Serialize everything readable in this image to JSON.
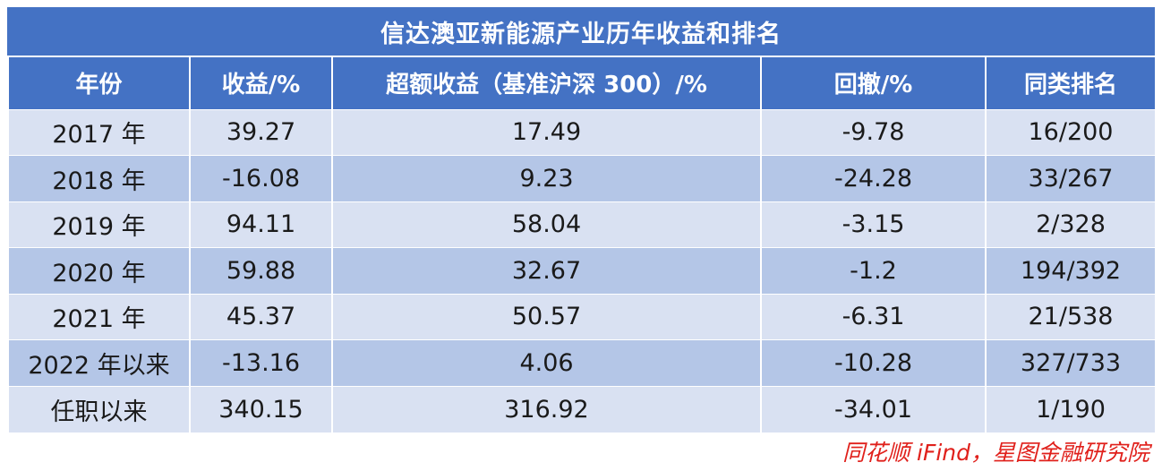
{
  "table": {
    "title": "信达澳亚新能源产业历年收益和排名",
    "headers": [
      "年份",
      "收益/%",
      "超额收益（基准沪深 300）/%",
      "回撤/%",
      "同类排名"
    ],
    "rows": [
      [
        "2017 年",
        "39.27",
        "17.49",
        "-9.78",
        "16/200"
      ],
      [
        "2018 年",
        "-16.08",
        "9.23",
        "-24.28",
        "33/267"
      ],
      [
        "2019 年",
        "94.11",
        "58.04",
        "-3.15",
        "2/328"
      ],
      [
        "2020 年",
        "59.88",
        "32.67",
        "-1.2",
        "194/392"
      ],
      [
        "2021 年",
        "45.37",
        "50.57",
        "-6.31",
        "21/538"
      ],
      [
        "2022 年以来",
        "-13.16",
        "4.06",
        "-10.28",
        "327/733"
      ],
      [
        "任职以来",
        "340.15",
        "316.92",
        "-34.01",
        "1/190"
      ]
    ]
  },
  "source": "同花顺 iFind，星图金融研究院",
  "colors": {
    "header_bg": "#4472c4",
    "row_light": "#d9e1f2",
    "row_dark": "#b4c6e7",
    "source_text": "#e0201b"
  }
}
